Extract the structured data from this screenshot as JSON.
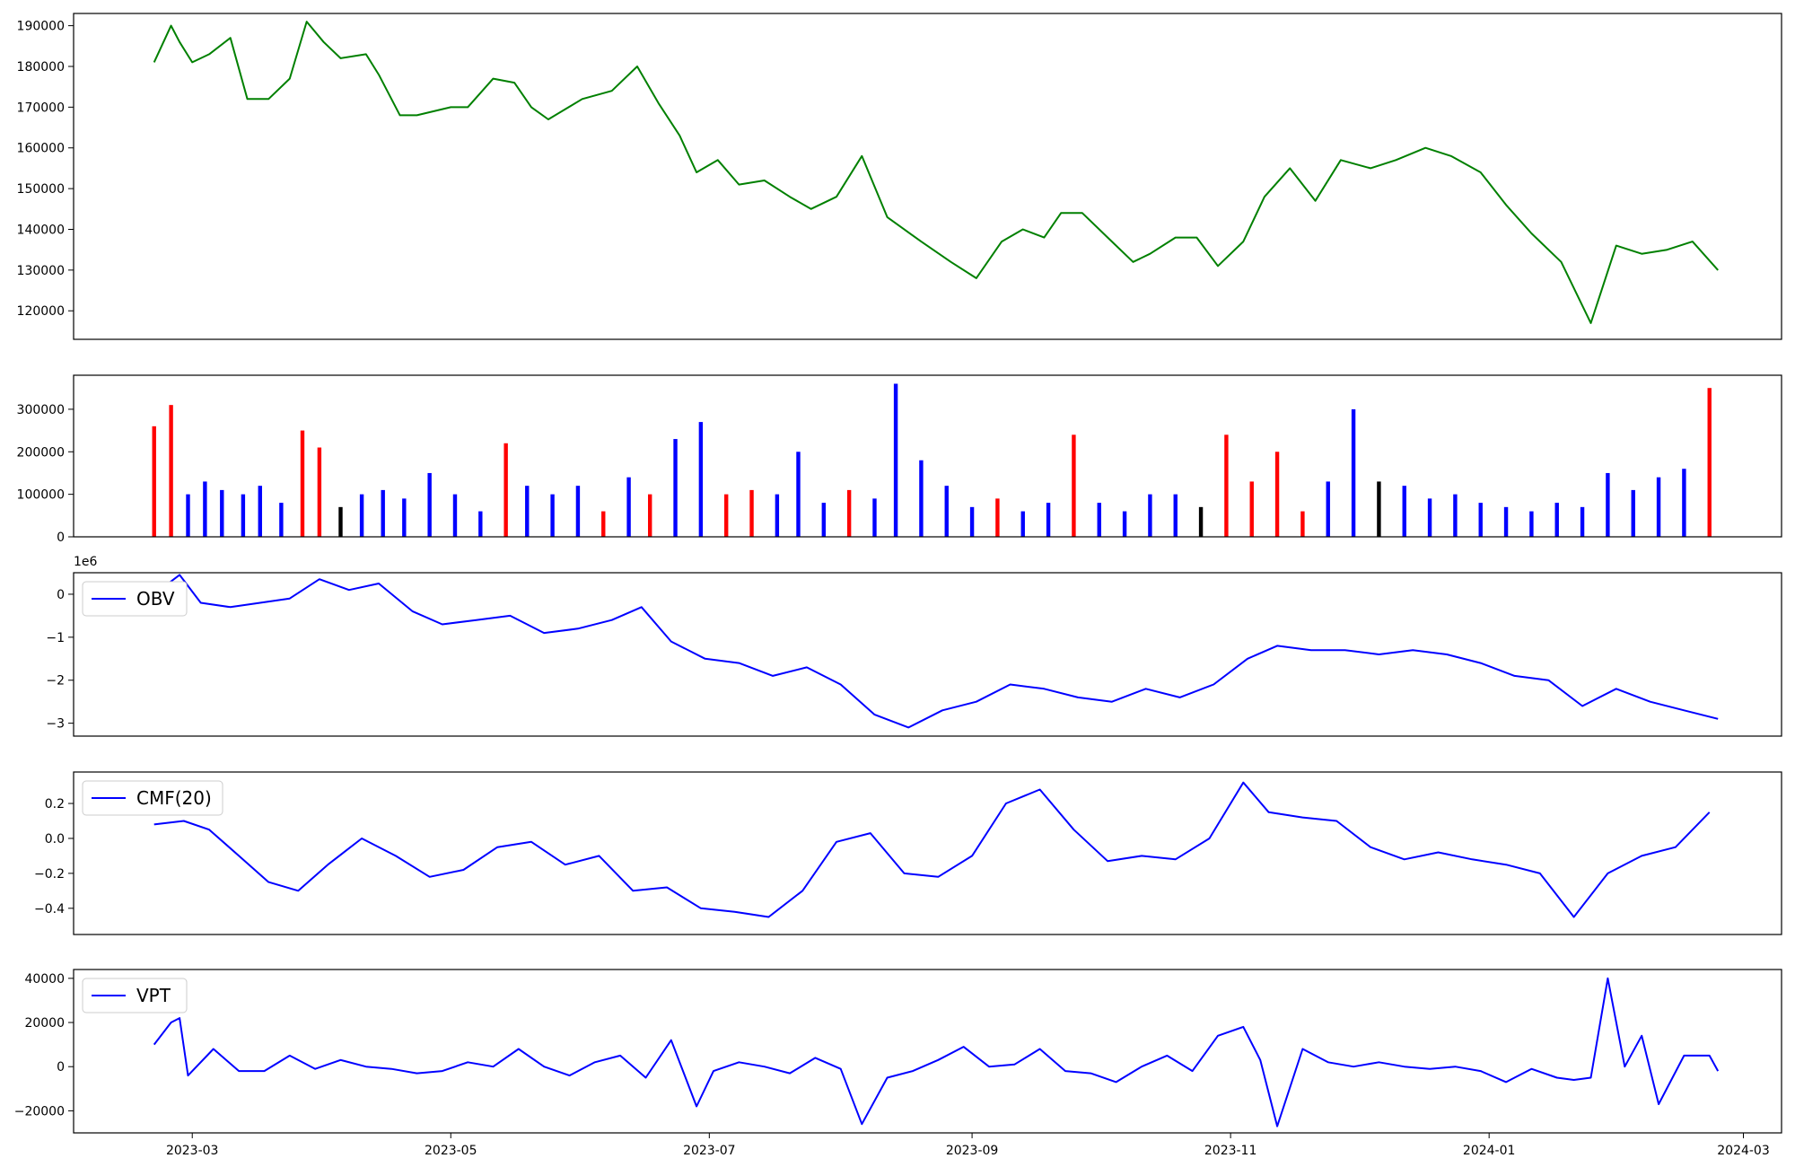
{
  "x_ticks": [
    "2023-03",
    "2023-05",
    "2023-07",
    "2023-09",
    "2023-11",
    "2024-01",
    "2024-03"
  ],
  "chart_data": [
    {
      "type": "line",
      "color": "#008000",
      "xlim": [
        "2023-02-01",
        "2024-03-10"
      ],
      "ylim": [
        113000,
        193000
      ],
      "yticks": [
        120000,
        130000,
        140000,
        150000,
        160000,
        170000,
        180000,
        190000
      ],
      "yticklabels": [
        "120000",
        "130000",
        "140000",
        "150000",
        "160000",
        "170000",
        "180000",
        "190000"
      ],
      "x": [
        "2023-02-20",
        "2023-02-24",
        "2023-02-26",
        "2023-03-01",
        "2023-03-05",
        "2023-03-10",
        "2023-03-14",
        "2023-03-19",
        "2023-03-24",
        "2023-03-28",
        "2023-04-01",
        "2023-04-05",
        "2023-04-11",
        "2023-04-14",
        "2023-04-19",
        "2023-04-23",
        "2023-05-01",
        "2023-05-05",
        "2023-05-11",
        "2023-05-16",
        "2023-05-20",
        "2023-05-24",
        "2023-06-01",
        "2023-06-08",
        "2023-06-14",
        "2023-06-19",
        "2023-06-24",
        "2023-06-28",
        "2023-07-03",
        "2023-07-08",
        "2023-07-14",
        "2023-07-20",
        "2023-07-25",
        "2023-07-31",
        "2023-08-06",
        "2023-08-12",
        "2023-08-20",
        "2023-08-27",
        "2023-09-02",
        "2023-09-08",
        "2023-09-13",
        "2023-09-18",
        "2023-09-22",
        "2023-09-27",
        "2023-10-03",
        "2023-10-09",
        "2023-10-13",
        "2023-10-19",
        "2023-10-24",
        "2023-10-29",
        "2023-11-04",
        "2023-11-09",
        "2023-11-15",
        "2023-11-21",
        "2023-11-27",
        "2023-12-04",
        "2023-12-10",
        "2023-12-17",
        "2023-12-23",
        "2023-12-30",
        "2024-01-05",
        "2024-01-11",
        "2024-01-18",
        "2024-01-25",
        "2024-01-31",
        "2024-02-06",
        "2024-02-12",
        "2024-02-18",
        "2024-02-24"
      ],
      "y": [
        181000,
        190000,
        186000,
        181000,
        183000,
        187000,
        172000,
        172000,
        177000,
        191000,
        186000,
        182000,
        183000,
        178000,
        168000,
        168000,
        170000,
        170000,
        177000,
        176000,
        170000,
        167000,
        172000,
        174000,
        180000,
        171000,
        163000,
        154000,
        157000,
        151000,
        152000,
        148000,
        145000,
        148000,
        158000,
        143000,
        137000,
        132000,
        128000,
        137000,
        140000,
        138000,
        144000,
        144000,
        138000,
        132000,
        134000,
        138000,
        138000,
        131000,
        137000,
        148000,
        155000,
        147000,
        157000,
        155000,
        157000,
        160000,
        158000,
        154000,
        146000,
        139000,
        132000,
        117000,
        136000,
        134000,
        135000,
        137000,
        130000
      ]
    },
    {
      "type": "bar",
      "colors_meaning": {
        "up": "#0000ff",
        "down": "#ff0000",
        "flat": "#000000"
      },
      "xlim": [
        "2023-02-01",
        "2024-03-10"
      ],
      "ylim": [
        0,
        380000
      ],
      "yticks": [
        0,
        100000,
        200000,
        300000
      ],
      "yticklabels": [
        "0",
        "100000",
        "200000",
        "300000"
      ],
      "series": [
        {
          "x": [
            "2023-02-20",
            "2023-02-24",
            "2023-02-28",
            "2023-03-04",
            "2023-03-08",
            "2023-03-13",
            "2023-03-17",
            "2023-03-22",
            "2023-03-27",
            "2023-03-31",
            "2023-04-05",
            "2023-04-10",
            "2023-04-15",
            "2023-04-20",
            "2023-04-26",
            "2023-05-02",
            "2023-05-08",
            "2023-05-14",
            "2023-05-19",
            "2023-05-25",
            "2023-05-31",
            "2023-06-06",
            "2023-06-12",
            "2023-06-17",
            "2023-06-23",
            "2023-06-29",
            "2023-07-05",
            "2023-07-11",
            "2023-07-17",
            "2023-07-22",
            "2023-07-28",
            "2023-08-03",
            "2023-08-09",
            "2023-08-14",
            "2023-08-20",
            "2023-08-26",
            "2023-09-01",
            "2023-09-07",
            "2023-09-13",
            "2023-09-19",
            "2023-09-25",
            "2023-10-01",
            "2023-10-07",
            "2023-10-13",
            "2023-10-19",
            "2023-10-25",
            "2023-10-31",
            "2023-11-06",
            "2023-11-12",
            "2023-11-18",
            "2023-11-24",
            "2023-11-30",
            "2023-12-06",
            "2023-12-12",
            "2023-12-18",
            "2023-12-24",
            "2023-12-30",
            "2024-01-05",
            "2024-01-11",
            "2024-01-17",
            "2024-01-23",
            "2024-01-29",
            "2024-02-04",
            "2024-02-10",
            "2024-02-16",
            "2024-02-22"
          ],
          "values": [
            260000,
            310000,
            100000,
            130000,
            110000,
            100000,
            120000,
            80000,
            250000,
            210000,
            70000,
            100000,
            110000,
            90000,
            150000,
            100000,
            60000,
            220000,
            120000,
            100000,
            120000,
            60000,
            140000,
            100000,
            230000,
            270000,
            100000,
            110000,
            100000,
            200000,
            80000,
            110000,
            90000,
            360000,
            180000,
            120000,
            70000,
            90000,
            60000,
            80000,
            240000,
            80000,
            60000,
            100000,
            100000,
            70000,
            240000,
            130000,
            200000,
            60000,
            130000,
            300000,
            130000,
            120000,
            90000,
            100000,
            80000,
            70000,
            60000,
            80000,
            70000,
            150000,
            110000,
            140000,
            160000,
            350000
          ],
          "dirs": [
            "down",
            "down",
            "up",
            "up",
            "up",
            "up",
            "up",
            "up",
            "down",
            "down",
            "flat",
            "up",
            "up",
            "up",
            "up",
            "up",
            "up",
            "down",
            "up",
            "up",
            "up",
            "down",
            "up",
            "down",
            "up",
            "up",
            "down",
            "down",
            "up",
            "up",
            "up",
            "down",
            "up",
            "up",
            "up",
            "up",
            "up",
            "down",
            "up",
            "up",
            "down",
            "up",
            "up",
            "up",
            "up",
            "flat",
            "down",
            "down",
            "down",
            "down",
            "up",
            "up",
            "flat",
            "up",
            "up",
            "up",
            "up",
            "up",
            "up",
            "up",
            "up",
            "up",
            "up",
            "up",
            "up",
            "down"
          ]
        }
      ]
    },
    {
      "type": "line",
      "color": "#0000ff",
      "legend": "OBV",
      "offset_text": "1e6",
      "xlim": [
        "2023-02-01",
        "2024-03-10"
      ],
      "ylim": [
        -3.3,
        0.5
      ],
      "yticks": [
        -3,
        -2,
        -1,
        0
      ],
      "yticklabels": [
        "−3",
        "−2",
        "−1",
        "0"
      ],
      "x": [
        "2023-02-20",
        "2023-02-26",
        "2023-03-03",
        "2023-03-10",
        "2023-03-17",
        "2023-03-24",
        "2023-03-31",
        "2023-04-07",
        "2023-04-14",
        "2023-04-22",
        "2023-04-29",
        "2023-05-07",
        "2023-05-15",
        "2023-05-23",
        "2023-05-31",
        "2023-06-08",
        "2023-06-15",
        "2023-06-22",
        "2023-06-30",
        "2023-07-08",
        "2023-07-16",
        "2023-07-24",
        "2023-08-01",
        "2023-08-09",
        "2023-08-17",
        "2023-08-25",
        "2023-09-02",
        "2023-09-10",
        "2023-09-18",
        "2023-09-26",
        "2023-10-04",
        "2023-10-12",
        "2023-10-20",
        "2023-10-28",
        "2023-11-05",
        "2023-11-12",
        "2023-11-20",
        "2023-11-28",
        "2023-12-06",
        "2023-12-14",
        "2023-12-22",
        "2023-12-30",
        "2024-01-07",
        "2024-01-15",
        "2024-01-23",
        "2024-01-31",
        "2024-02-08",
        "2024-02-16",
        "2024-02-24"
      ],
      "y": [
        0.0,
        0.45,
        -0.2,
        -0.3,
        -0.2,
        -0.1,
        0.35,
        0.1,
        0.25,
        -0.4,
        -0.7,
        -0.6,
        -0.5,
        -0.9,
        -0.8,
        -0.6,
        -0.3,
        -1.1,
        -1.5,
        -1.6,
        -1.9,
        -1.7,
        -2.1,
        -2.8,
        -3.1,
        -2.7,
        -2.5,
        -2.1,
        -2.2,
        -2.4,
        -2.5,
        -2.2,
        -2.4,
        -2.1,
        -1.5,
        -1.2,
        -1.3,
        -1.3,
        -1.4,
        -1.3,
        -1.4,
        -1.6,
        -1.9,
        -2.0,
        -2.6,
        -2.2,
        -2.5,
        -2.7,
        -2.9
      ]
    },
    {
      "type": "line",
      "color": "#0000ff",
      "legend": "CMF(20)",
      "xlim": [
        "2023-02-01",
        "2024-03-10"
      ],
      "ylim": [
        -0.55,
        0.38
      ],
      "yticks": [
        -0.4,
        -0.2,
        0.0,
        0.2
      ],
      "yticklabels": [
        "−0.4",
        "−0.2",
        "0.0",
        "0.2"
      ],
      "x": [
        "2023-02-20",
        "2023-02-27",
        "2023-03-05",
        "2023-03-12",
        "2023-03-19",
        "2023-03-26",
        "2023-04-02",
        "2023-04-10",
        "2023-04-18",
        "2023-04-26",
        "2023-05-04",
        "2023-05-12",
        "2023-05-20",
        "2023-05-28",
        "2023-06-05",
        "2023-06-13",
        "2023-06-21",
        "2023-06-29",
        "2023-07-07",
        "2023-07-15",
        "2023-07-23",
        "2023-07-31",
        "2023-08-08",
        "2023-08-16",
        "2023-08-24",
        "2023-09-01",
        "2023-09-09",
        "2023-09-17",
        "2023-09-25",
        "2023-10-03",
        "2023-10-11",
        "2023-10-19",
        "2023-10-27",
        "2023-11-04",
        "2023-11-10",
        "2023-11-18",
        "2023-11-26",
        "2023-12-04",
        "2023-12-12",
        "2023-12-20",
        "2023-12-28",
        "2024-01-05",
        "2024-01-13",
        "2024-01-21",
        "2024-01-29",
        "2024-02-06",
        "2024-02-14",
        "2024-02-22"
      ],
      "y": [
        0.08,
        0.1,
        0.05,
        -0.1,
        -0.25,
        -0.3,
        -0.15,
        0.0,
        -0.1,
        -0.22,
        -0.18,
        -0.05,
        -0.02,
        -0.15,
        -0.1,
        -0.3,
        -0.28,
        -0.4,
        -0.42,
        -0.45,
        -0.3,
        -0.02,
        0.03,
        -0.2,
        -0.22,
        -0.1,
        0.2,
        0.28,
        0.05,
        -0.13,
        -0.1,
        -0.12,
        0.0,
        0.32,
        0.15,
        0.12,
        0.1,
        -0.05,
        -0.12,
        -0.08,
        -0.12,
        -0.15,
        -0.2,
        -0.45,
        -0.2,
        -0.1,
        -0.05,
        0.15
      ]
    },
    {
      "type": "line",
      "color": "#0000ff",
      "legend": "VPT",
      "xlim": [
        "2023-02-01",
        "2024-03-10"
      ],
      "ylim": [
        -30000,
        44000
      ],
      "yticks": [
        -20000,
        0,
        20000,
        40000
      ],
      "yticklabels": [
        "−20000",
        "0",
        "20000",
        "40000"
      ],
      "x": [
        "2023-02-20",
        "2023-02-24",
        "2023-02-26",
        "2023-02-28",
        "2023-03-06",
        "2023-03-12",
        "2023-03-18",
        "2023-03-24",
        "2023-03-30",
        "2023-04-05",
        "2023-04-11",
        "2023-04-17",
        "2023-04-23",
        "2023-04-29",
        "2023-05-05",
        "2023-05-11",
        "2023-05-17",
        "2023-05-23",
        "2023-05-29",
        "2023-06-04",
        "2023-06-10",
        "2023-06-16",
        "2023-06-22",
        "2023-06-28",
        "2023-07-02",
        "2023-07-08",
        "2023-07-14",
        "2023-07-20",
        "2023-07-26",
        "2023-08-01",
        "2023-08-06",
        "2023-08-12",
        "2023-08-18",
        "2023-08-24",
        "2023-08-30",
        "2023-09-05",
        "2023-09-11",
        "2023-09-17",
        "2023-09-23",
        "2023-09-29",
        "2023-10-05",
        "2023-10-11",
        "2023-10-17",
        "2023-10-23",
        "2023-10-29",
        "2023-11-04",
        "2023-11-08",
        "2023-11-12",
        "2023-11-18",
        "2023-11-24",
        "2023-11-30",
        "2023-12-06",
        "2023-12-12",
        "2023-12-18",
        "2023-12-24",
        "2023-12-30",
        "2024-01-05",
        "2024-01-11",
        "2024-01-17",
        "2024-01-21",
        "2024-01-25",
        "2024-01-29",
        "2024-02-02",
        "2024-02-06",
        "2024-02-10",
        "2024-02-16",
        "2024-02-22",
        "2024-02-24"
      ],
      "y": [
        10000,
        20000,
        22000,
        -4000,
        8000,
        -2000,
        -2000,
        5000,
        -1000,
        3000,
        0,
        -1000,
        -3000,
        -2000,
        2000,
        0,
        8000,
        0,
        -4000,
        2000,
        5000,
        -5000,
        12000,
        -18000,
        -2000,
        2000,
        0,
        -3000,
        4000,
        -1000,
        -26000,
        -5000,
        -2000,
        3000,
        9000,
        0,
        1000,
        8000,
        -2000,
        -3000,
        -7000,
        0,
        5000,
        -2000,
        14000,
        18000,
        3000,
        -27000,
        8000,
        2000,
        0,
        2000,
        0,
        -1000,
        0,
        -2000,
        -7000,
        -1000,
        -5000,
        -6000,
        -5000,
        40000,
        0,
        14000,
        -17000,
        5000,
        5000,
        -2000
      ]
    }
  ]
}
